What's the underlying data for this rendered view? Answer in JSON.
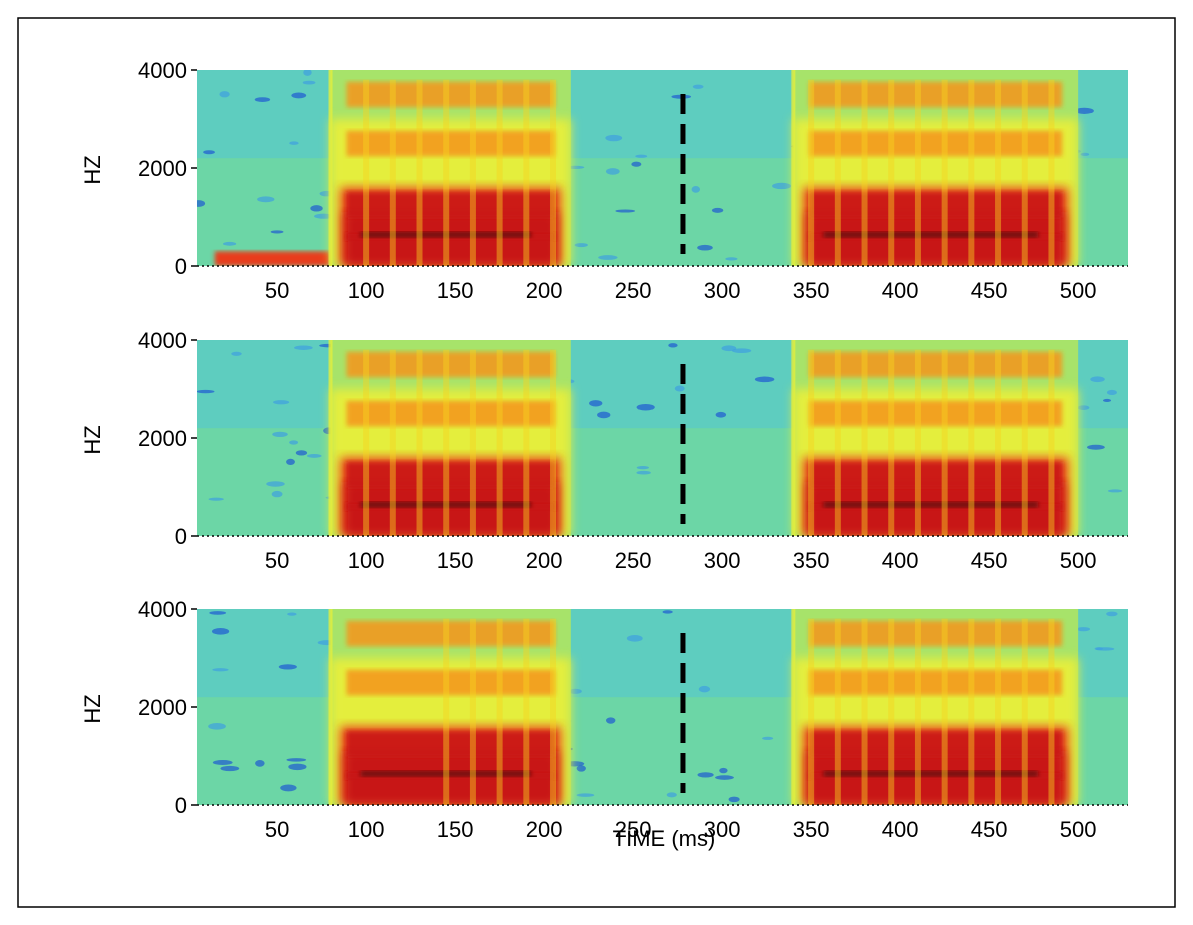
{
  "chart_data": {
    "type": "heatmap",
    "xlabel": "TIME (ms)",
    "ylabel": "HZ",
    "xlim": [
      5,
      528
    ],
    "ylim": [
      0,
      4000
    ],
    "x_ticks": [
      50,
      100,
      150,
      200,
      250,
      300,
      350,
      400,
      450,
      500
    ],
    "y_ticks": [
      0,
      2000,
      4000
    ],
    "colormap": [
      "#1e5ad2",
      "#3ea0e0",
      "#4fc4d8",
      "#6cd6a6",
      "#a7e36a",
      "#e4ee3c",
      "#f6d21f",
      "#f5951b",
      "#e83c1a",
      "#c81416",
      "#6e0a08"
    ],
    "marker": {
      "type": "dashed-vertical-line",
      "x": 278,
      "color": "#000000"
    },
    "panels": [
      {
        "name": "panel-1",
        "baseline_band": {
          "x": [
            15,
            80
          ],
          "f": [
            0,
            300
          ]
        },
        "voiced_segments": [
          {
            "x": [
              80,
              215
            ],
            "formant_freqs": [
              600,
              1250,
              2500,
              3500
            ],
            "pulses": [
              100,
              115,
              130,
              145,
              160,
              175,
              190,
              205
            ]
          },
          {
            "x": [
              340,
              500
            ],
            "formant_freqs": [
              600,
              1250,
              2500,
              3500
            ],
            "pulses": [
              350,
              365,
              380,
              395,
              410,
              425,
              440,
              455,
              470,
              485
            ]
          }
        ]
      },
      {
        "name": "panel-2",
        "voiced_segments": [
          {
            "x": [
              80,
              215
            ],
            "formant_freqs": [
              600,
              1250,
              2500,
              3500
            ],
            "pulses": [
              100,
              115,
              130,
              145,
              160,
              175,
              190,
              205
            ]
          },
          {
            "x": [
              340,
              500
            ],
            "formant_freqs": [
              600,
              1250,
              2500,
              3500
            ],
            "pulses": [
              350,
              365,
              380,
              395,
              410,
              425,
              440,
              455,
              470,
              485
            ]
          }
        ]
      },
      {
        "name": "panel-3",
        "voiced_segments": [
          {
            "x": [
              80,
              215
            ],
            "formant_freqs": [
              600,
              1250,
              2500,
              3500
            ],
            "pulses": [
              145,
              160,
              175,
              190,
              205
            ]
          },
          {
            "x": [
              340,
              500
            ],
            "formant_freqs": [
              600,
              1250,
              2500,
              3500
            ],
            "pulses": [
              350,
              365,
              380,
              395,
              410,
              425,
              440,
              455,
              470,
              485
            ]
          }
        ]
      }
    ]
  }
}
